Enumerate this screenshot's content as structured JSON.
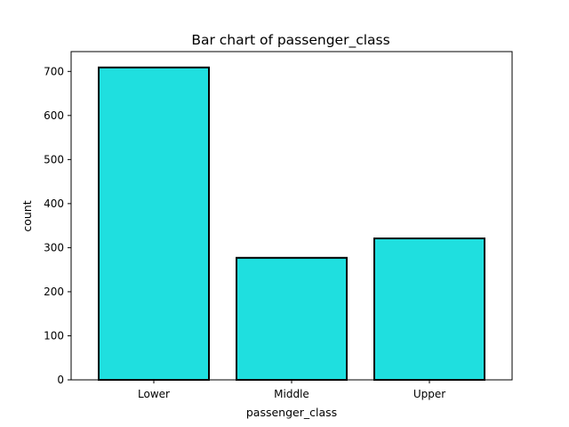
{
  "chart_data": {
    "type": "bar",
    "title": "Bar chart of passenger_class",
    "xlabel": "passenger_class",
    "ylabel": "count",
    "categories": [
      "Lower",
      "Middle",
      "Upper"
    ],
    "values": [
      709,
      277,
      321
    ],
    "ylim": [
      0,
      745
    ],
    "yticks": [
      0,
      100,
      200,
      300,
      400,
      500,
      600,
      700
    ],
    "grid": false,
    "bar_color": "#1fdfdf",
    "edge_color": "#000000"
  }
}
